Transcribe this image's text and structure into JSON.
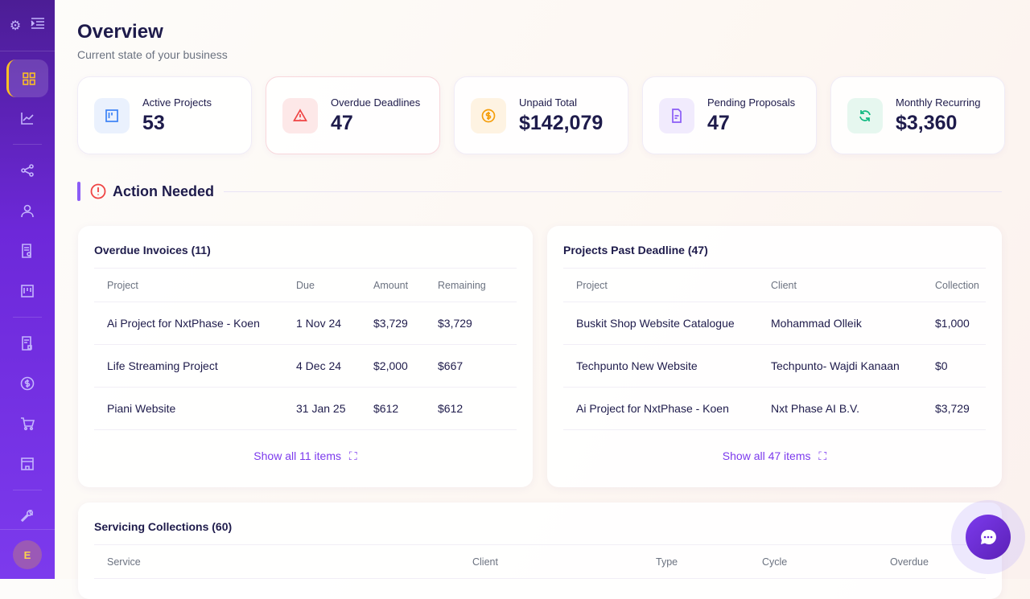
{
  "page": {
    "title": "Overview",
    "subtitle": "Current state of your business"
  },
  "sidebar": {
    "avatar_initial": "E",
    "active": "dashboard"
  },
  "stats": [
    {
      "label": "Active Projects",
      "value": "53",
      "icon": "kanban-icon",
      "color": "#3b82f6"
    },
    {
      "label": "Overdue Deadlines",
      "value": "47",
      "icon": "warning-icon",
      "color": "#ef4444"
    },
    {
      "label": "Unpaid Total",
      "value": "$142,079",
      "icon": "dollar-icon",
      "color": "#f59e0b"
    },
    {
      "label": "Pending Proposals",
      "value": "47",
      "icon": "document-icon",
      "color": "#8b5cf6"
    },
    {
      "label": "Monthly Recurring",
      "value": "$3,360",
      "icon": "refresh-icon",
      "color": "#10b981"
    }
  ],
  "action": {
    "title": "Action Needed"
  },
  "overdue_invoices": {
    "title": "Overdue Invoices (11)",
    "columns": [
      "Project",
      "Due",
      "Amount",
      "Remaining"
    ],
    "rows": [
      [
        "Ai Project for NxtPhase - Koen",
        "1 Nov 24",
        "$3,729",
        "$3,729"
      ],
      [
        "Life Streaming Project",
        "4 Dec 24",
        "$2,000",
        "$667"
      ],
      [
        "Piani Website",
        "31 Jan 25",
        "$612",
        "$612"
      ]
    ],
    "show_all": "Show all 11 items"
  },
  "past_deadline": {
    "title": "Projects Past Deadline (47)",
    "columns": [
      "Project",
      "Client",
      "Collection"
    ],
    "rows": [
      [
        "Buskit Shop Website Catalogue",
        "Mohammad Olleik",
        "$1,000"
      ],
      [
        "Techpunto New Website",
        "Techpunto- Wajdi Kanaan",
        "$0"
      ],
      [
        "Ai Project for NxtPhase - Koen",
        "Nxt Phase AI B.V.",
        "$3,729"
      ]
    ],
    "show_all": "Show all 47 items"
  },
  "servicing": {
    "title": "Servicing Collections (60)",
    "columns": [
      "Service",
      "Client",
      "Type",
      "Cycle",
      "Overdue"
    ]
  },
  "colors": {
    "sidebar": "#6d28d9",
    "accent": "#7c3aed",
    "active_indicator": "#fbbf24"
  }
}
